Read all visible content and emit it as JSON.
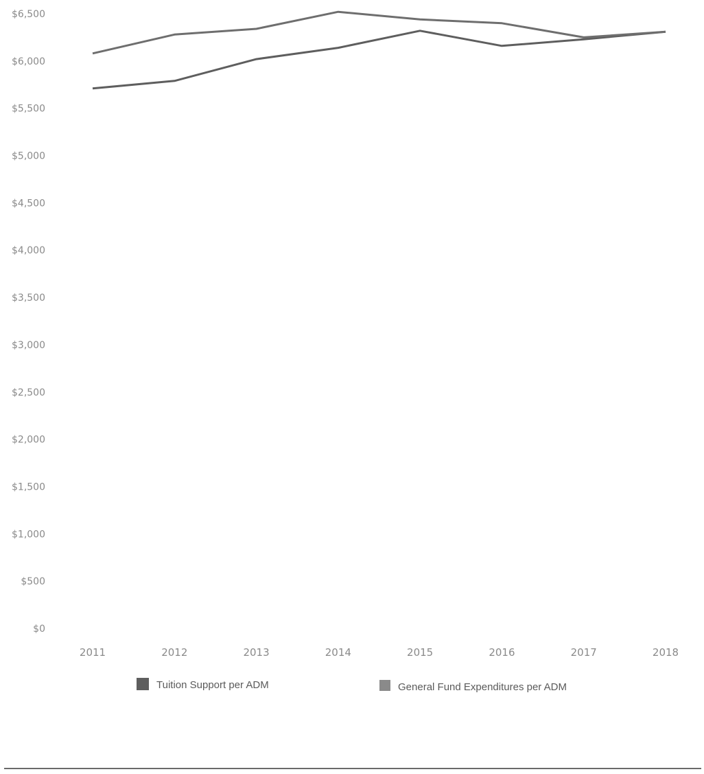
{
  "chart_data": {
    "type": "line",
    "title": "",
    "xlabel": "",
    "ylabel": "",
    "x": [
      "2011",
      "2012",
      "2013",
      "2014",
      "2015",
      "2016",
      "2017",
      "2018"
    ],
    "ylim": [
      0,
      6500
    ],
    "yticks": [
      {
        "value": 0,
        "label": "$0"
      },
      {
        "value": 500,
        "label": "$500"
      },
      {
        "value": 1000,
        "label": "$1,000"
      },
      {
        "value": 1500,
        "label": "$1,500"
      },
      {
        "value": 2000,
        "label": "$2,000"
      },
      {
        "value": 2500,
        "label": "$2,500"
      },
      {
        "value": 3000,
        "label": "$3,000"
      },
      {
        "value": 3500,
        "label": "$3,500"
      },
      {
        "value": 4000,
        "label": "$4,000"
      },
      {
        "value": 4500,
        "label": "$4,500"
      },
      {
        "value": 5000,
        "label": "$5,000"
      },
      {
        "value": 5500,
        "label": "$5,500"
      },
      {
        "value": 6000,
        "label": "$6,000"
      },
      {
        "value": 6500,
        "label": "$6,500"
      }
    ],
    "grid": false,
    "legend_position": "bottom",
    "series": [
      {
        "name": "Tuition Support per ADM",
        "color": "#5e5e5e",
        "values": [
          5710,
          5790,
          6020,
          6140,
          6320,
          6160,
          6230,
          6310
        ]
      },
      {
        "name": "General Fund Expenditures per ADM",
        "color": "#6e6e6e",
        "values": [
          6080,
          6280,
          6340,
          6520,
          6440,
          6400,
          6250,
          6310
        ]
      }
    ]
  }
}
